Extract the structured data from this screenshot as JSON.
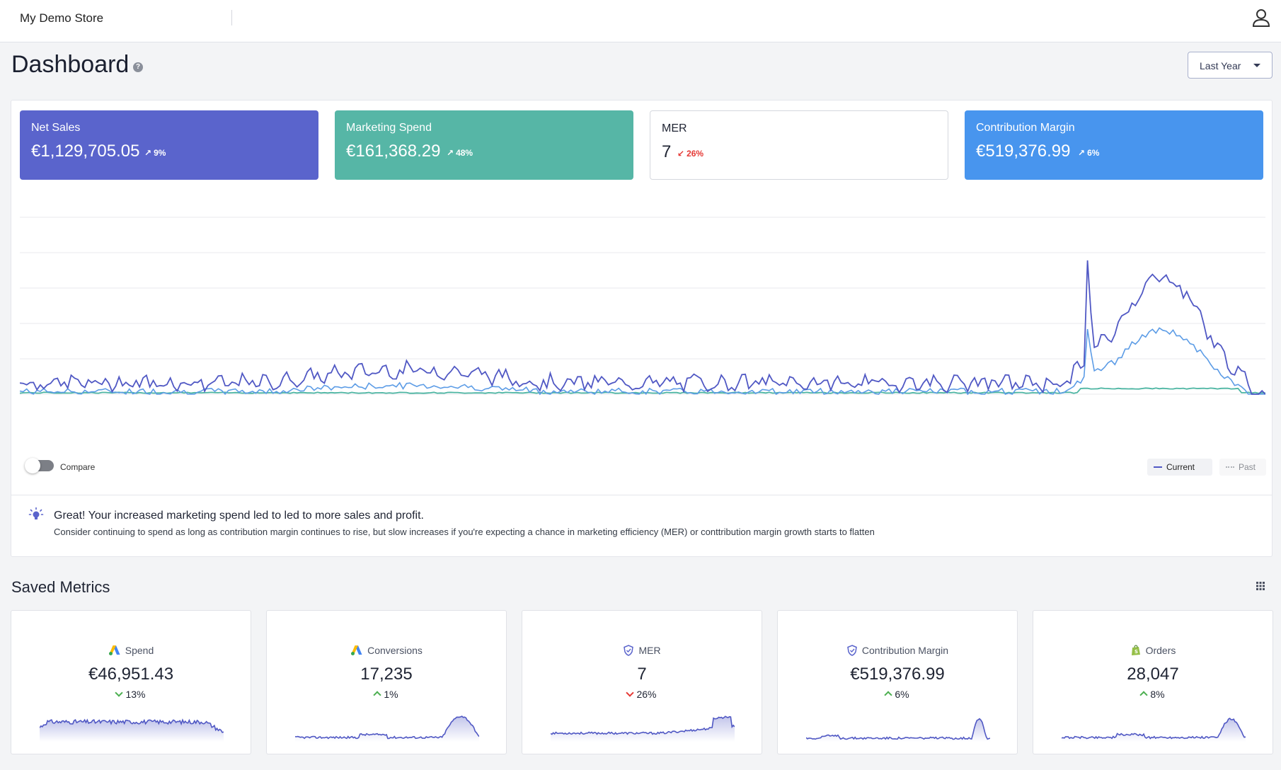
{
  "header": {
    "store_name": "My Demo Store",
    "user_icon": "user-icon"
  },
  "page": {
    "title": "Dashboard",
    "help_icon": "question-circle-icon",
    "period_select": {
      "value": "Last Year"
    }
  },
  "kpis": [
    {
      "label": "Net Sales",
      "value": "€1,129,705.05",
      "change": "9%",
      "direction": "up",
      "bg": "#5a64cc",
      "fg": "#ffffff"
    },
    {
      "label": "Marketing Spend",
      "value": "€161,368.29",
      "change": "48%",
      "direction": "up",
      "bg": "#56b6a6",
      "fg": "#ffffff"
    },
    {
      "label": "MER",
      "value": "7",
      "change": "26%",
      "direction": "down",
      "bg": "#ffffff",
      "fg": "#1f2433",
      "change_color": "#e53935"
    },
    {
      "label": "Contribution Margin",
      "value": "€519,376.99",
      "change": "6%",
      "direction": "up",
      "bg": "#4895ee",
      "fg": "#ffffff"
    }
  ],
  "chart": {
    "series_colors": {
      "net_sales": "#5058c4",
      "contribution_margin": "#5c9ce6",
      "marketing_spend": "#4cb5a2"
    },
    "gridlines": 6
  },
  "compare": {
    "label": "Compare",
    "enabled": false
  },
  "legend": {
    "current": "Current",
    "past": "Past"
  },
  "insight": {
    "title": "Great! Your increased marketing spend led to led to more sales and profit.",
    "body": "Consider continuing to spend as long as contribution margin continues to rise, but slow increases if you're expecting a chance in marketing efficiency (MER) or conttribution margin growth starts to flatten"
  },
  "saved_metrics": {
    "title": "Saved Metrics",
    "items": [
      {
        "name": "Spend",
        "value": "€46,951.43",
        "change": "13%",
        "direction": "down",
        "icon": "google-ads-icon",
        "shape": "flat"
      },
      {
        "name": "Conversions",
        "value": "17,235",
        "change": "1%",
        "direction": "up",
        "icon": "google-ads-icon",
        "shape": "spike"
      },
      {
        "name": "MER",
        "value": "7",
        "change": "26%",
        "direction": "down",
        "icon": "shield-icon",
        "shape": "mer"
      },
      {
        "name": "Contribution Margin",
        "value": "€519,376.99",
        "change": "6%",
        "direction": "up",
        "icon": "shield-icon",
        "shape": "late-spike"
      },
      {
        "name": "Orders",
        "value": "28,047",
        "change": "8%",
        "direction": "up",
        "icon": "shopify-icon",
        "shape": "late-hump"
      }
    ]
  },
  "colors": {
    "up": "#4caf50",
    "down_spend": "#4caf50",
    "down": "#e53935",
    "accent": "#5058c4"
  }
}
